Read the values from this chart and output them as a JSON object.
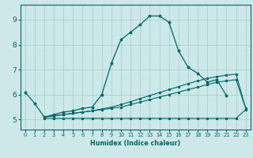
{
  "title": "",
  "xlabel": "Humidex (Indice chaleur)",
  "background_color": "#cce8e8",
  "grid_color": "#aacccc",
  "line_color": "#006666",
  "xlim": [
    -0.5,
    23.5
  ],
  "ylim": [
    4.6,
    9.6
  ],
  "xticks": [
    0,
    1,
    2,
    3,
    4,
    5,
    6,
    7,
    8,
    9,
    10,
    11,
    12,
    13,
    14,
    15,
    16,
    17,
    18,
    19,
    20,
    21,
    22,
    23
  ],
  "yticks": [
    5,
    6,
    7,
    8,
    9
  ],
  "series1_x": [
    0,
    1,
    2,
    3,
    4,
    5,
    6,
    7,
    8,
    9,
    10,
    11,
    12,
    13,
    14,
    15,
    16,
    17,
    18,
    19,
    20,
    21
  ],
  "series1_y": [
    6.1,
    5.65,
    5.1,
    5.2,
    5.3,
    5.35,
    5.45,
    5.5,
    6.0,
    7.25,
    8.2,
    8.5,
    8.8,
    9.15,
    9.15,
    8.9,
    7.75,
    7.1,
    6.85,
    6.5,
    6.6,
    5.95
  ],
  "series2_x": [
    2,
    3,
    4,
    5,
    6,
    7,
    8,
    9,
    10,
    11,
    12,
    13,
    14,
    15,
    16,
    17,
    18,
    19,
    20,
    21,
    22,
    23
  ],
  "series2_y": [
    5.1,
    5.15,
    5.2,
    5.25,
    5.3,
    5.35,
    5.4,
    5.45,
    5.5,
    5.6,
    5.7,
    5.8,
    5.9,
    6.0,
    6.1,
    6.2,
    6.3,
    6.4,
    6.5,
    6.55,
    6.6,
    5.45
  ],
  "series3_x": [
    2,
    3,
    4,
    5,
    6,
    7,
    8,
    9,
    10,
    11,
    12,
    13,
    14,
    15,
    16,
    17,
    18,
    19,
    20,
    21,
    22,
    23
  ],
  "series3_y": [
    5.1,
    5.15,
    5.2,
    5.25,
    5.3,
    5.35,
    5.42,
    5.5,
    5.6,
    5.72,
    5.84,
    5.96,
    6.08,
    6.2,
    6.32,
    6.44,
    6.55,
    6.65,
    6.72,
    6.78,
    6.82,
    5.45
  ],
  "series4_x": [
    2,
    3,
    4,
    5,
    6,
    7,
    8,
    9,
    10,
    11,
    12,
    13,
    14,
    15,
    16,
    17,
    18,
    19,
    20,
    21,
    22,
    23
  ],
  "series4_y": [
    5.05,
    5.05,
    5.05,
    5.05,
    5.05,
    5.05,
    5.05,
    5.05,
    5.05,
    5.05,
    5.05,
    5.05,
    5.05,
    5.05,
    5.05,
    5.05,
    5.05,
    5.05,
    5.05,
    5.05,
    5.05,
    5.4
  ]
}
